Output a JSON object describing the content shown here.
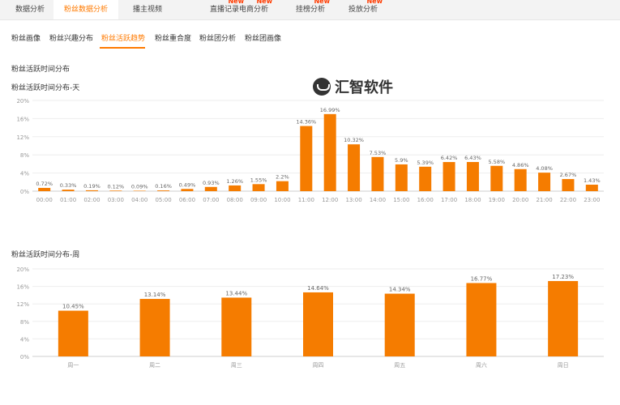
{
  "top_tabs": [
    {
      "label": "数据分析",
      "active": false,
      "new": false
    },
    {
      "label": "粉丝数据分析",
      "active": true,
      "new": false
    },
    {
      "label": "播主视频",
      "active": false,
      "new": false
    },
    {
      "label": "直播记录",
      "active": false,
      "new": true
    },
    {
      "label": "电商分析",
      "active": false,
      "new": true
    },
    {
      "label": "挂榜分析",
      "active": false,
      "new": true
    },
    {
      "label": "投放分析",
      "active": false,
      "new": true
    }
  ],
  "new_badge": "New",
  "sub_tabs": [
    {
      "label": "粉丝画像",
      "active": false
    },
    {
      "label": "粉丝兴趣分布",
      "active": false
    },
    {
      "label": "粉丝活跃趋势",
      "active": true
    },
    {
      "label": "粉丝重合度",
      "active": false
    },
    {
      "label": "粉丝团分析",
      "active": false
    },
    {
      "label": "粉丝团画像",
      "active": false
    }
  ],
  "section_title": "粉丝活跃时间分布",
  "watermark_text": "汇智软件",
  "colors": {
    "accent": "#ff7a00",
    "bar": "#f57c00"
  },
  "chart_data": [
    {
      "type": "bar",
      "title": "粉丝活跃时间分布-天",
      "y_ticks": [
        "0%",
        "4%",
        "8%",
        "12%",
        "16%",
        "20%"
      ],
      "ylim": [
        0,
        20
      ],
      "categories": [
        "00:00",
        "01:00",
        "02:00",
        "03:00",
        "04:00",
        "05:00",
        "06:00",
        "07:00",
        "08:00",
        "09:00",
        "10:00",
        "11:00",
        "12:00",
        "13:00",
        "14:00",
        "15:00",
        "16:00",
        "17:00",
        "18:00",
        "19:00",
        "20:00",
        "21:00",
        "22:00",
        "23:00"
      ],
      "values": [
        0.72,
        0.33,
        0.19,
        0.12,
        0.09,
        0.16,
        0.49,
        0.93,
        1.26,
        1.55,
        2.2,
        14.36,
        16.99,
        10.32,
        7.53,
        5.9,
        5.39,
        6.42,
        6.43,
        5.58,
        4.86,
        4.08,
        2.67,
        1.43
      ],
      "labels": [
        "0.72%",
        "0.33%",
        "0.19%",
        "0.12%",
        "0.09%",
        "0.16%",
        "0.49%",
        "0.93%",
        "1.26%",
        "1.55%",
        "2.2%",
        "14.36%",
        "16.99%",
        "10.32%",
        "7.53%",
        "5.9%",
        "5.39%",
        "6.42%",
        "6.43%",
        "5.58%",
        "4.86%",
        "4.08%",
        "2.67%",
        "1.43%"
      ]
    },
    {
      "type": "bar",
      "title": "粉丝活跃时间分布-周",
      "y_ticks": [
        "0%",
        "4%",
        "8%",
        "12%",
        "16%",
        "20%"
      ],
      "ylim": [
        0,
        20
      ],
      "categories": [
        "周一",
        "周二",
        "周三",
        "周四",
        "周五",
        "周六",
        "周日"
      ],
      "values": [
        10.45,
        13.14,
        13.44,
        14.64,
        14.34,
        16.77,
        17.23
      ],
      "labels": [
        "10.45%",
        "13.14%",
        "13.44%",
        "14.64%",
        "14.34%",
        "16.77%",
        "17.23%"
      ]
    }
  ]
}
